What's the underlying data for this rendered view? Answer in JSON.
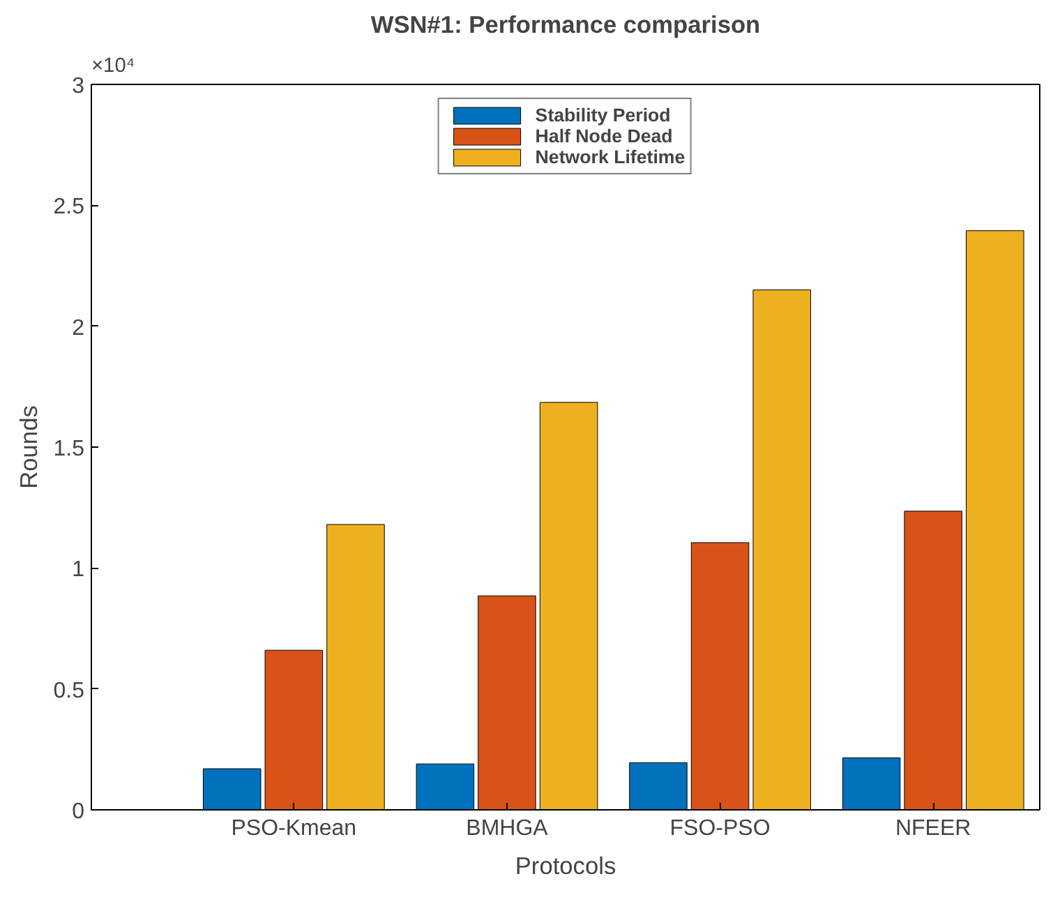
{
  "chart_data": {
    "type": "bar",
    "title": "WSN#1: Performance comparison",
    "xlabel": "Protocols",
    "ylabel": "Rounds",
    "categories": [
      "PSO-Kmean",
      "BMHGA",
      "FSO-PSO",
      "NFEER"
    ],
    "series": [
      {
        "name": "Stability Period",
        "color": "#0072bd",
        "values": [
          0.17,
          0.19,
          0.195,
          0.215
        ]
      },
      {
        "name": "Half Node Dead",
        "color": "#d95319",
        "values": [
          0.66,
          0.885,
          1.105,
          1.235
        ]
      },
      {
        "name": "Network Lifetime",
        "color": "#edb120",
        "values": [
          1.18,
          1.685,
          2.15,
          2.395
        ]
      }
    ],
    "ylim": [
      0,
      3
    ],
    "yticks": [
      0,
      0.5,
      1,
      1.5,
      2,
      2.5,
      3
    ],
    "annotations": [
      "×10⁴"
    ],
    "legend": "top",
    "grid": false
  }
}
